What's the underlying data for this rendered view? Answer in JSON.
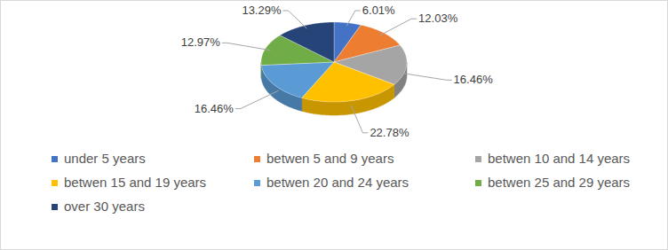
{
  "chart_data": {
    "type": "pie",
    "categories": [
      "under 5 years",
      "betwen 5 and 9 years",
      "betwen 10 and 14 years",
      "betwen 15 and 19 years",
      "betwen 20 and 24 years",
      "betwen 25 and 29 years",
      "over 30 years"
    ],
    "values": [
      6.01,
      12.03,
      16.46,
      22.78,
      16.46,
      12.97,
      13.29
    ],
    "value_labels": [
      "6.01%",
      "12.03%",
      "16.46%",
      "22.78%",
      "16.46%",
      "12.97%",
      "13.29%"
    ],
    "colors": [
      "#4472c4",
      "#ed7d31",
      "#a5a5a5",
      "#ffc000",
      "#5b9bd5",
      "#70ad47",
      "#264478"
    ],
    "data_labels": true,
    "legend": "bottom"
  }
}
